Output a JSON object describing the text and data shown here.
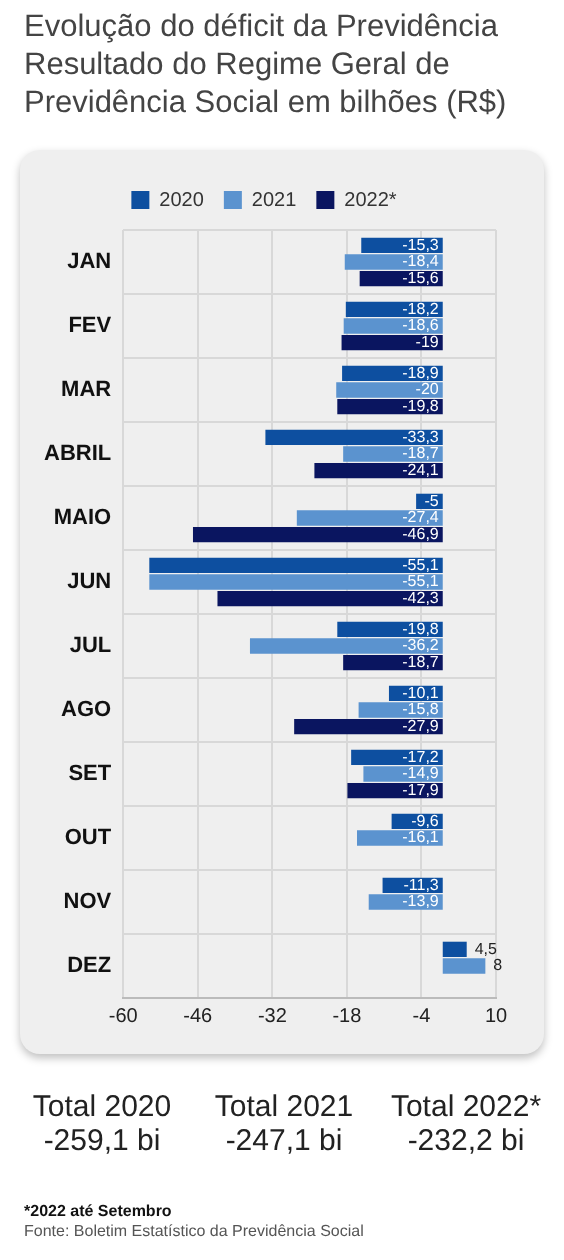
{
  "chart_data": {
    "type": "bar",
    "orientation": "horizontal",
    "title": "Evolução do déficit da Previdência Resultado do Regime Geral de Previdência Social em bilhões (R$)",
    "categories": [
      "JAN",
      "FEV",
      "MAR",
      "ABRIL",
      "MAIO",
      "JUN",
      "JUL",
      "AGO",
      "SET",
      "OUT",
      "NOV",
      "DEZ"
    ],
    "series": [
      {
        "name": "2020",
        "color": "#0d4fa0",
        "values": [
          -15.3,
          -18.2,
          -18.9,
          -33.3,
          -5,
          -55.1,
          -19.8,
          -10.1,
          -17.2,
          -9.6,
          -11.3,
          4.5
        ],
        "value_labels": [
          "-15,3",
          "-18,2",
          "-18,9",
          "-33,3",
          "-5",
          "-55,1",
          "-19,8",
          "-10,1",
          "-17,2",
          "-9,6",
          "-11,3",
          "4,5"
        ]
      },
      {
        "name": "2021",
        "color": "#5b93cf",
        "values": [
          -18.4,
          -18.6,
          -20,
          -18.7,
          -27.4,
          -55.1,
          -36.2,
          -15.8,
          -14.9,
          -16.1,
          -13.9,
          8
        ],
        "value_labels": [
          "-18,4",
          "-18,6",
          "-20",
          "-18,7",
          "-27,4",
          "-55,1",
          "-36,2",
          "-15,8",
          "-14,9",
          "-16,1",
          "-13,9",
          "8"
        ]
      },
      {
        "name": "2022*",
        "color": "#0a1560",
        "values": [
          -15.6,
          -19,
          -19.8,
          -24.1,
          -46.9,
          -42.3,
          -18.7,
          -27.9,
          -17.9,
          null,
          null,
          null
        ],
        "value_labels": [
          "-15,6",
          "-19",
          "-19,8",
          "-24,1",
          "-46,9",
          "-42,3",
          "-18,7",
          "-27,9",
          "-17,9",
          null,
          null,
          null
        ]
      }
    ],
    "xlim": [
      -60,
      10
    ],
    "xticks": [
      -60,
      -46,
      -32,
      -18,
      -4,
      10
    ],
    "grid": true,
    "legend": "top",
    "annotations": [
      "Total 2020 -259,1 bi",
      "Total 2021 -247,1 bi",
      "Total 2022* -232,2 bi",
      "*2022 até Setembro",
      "Fonte: Boletim Estatístico da Previdência Social"
    ]
  }
}
